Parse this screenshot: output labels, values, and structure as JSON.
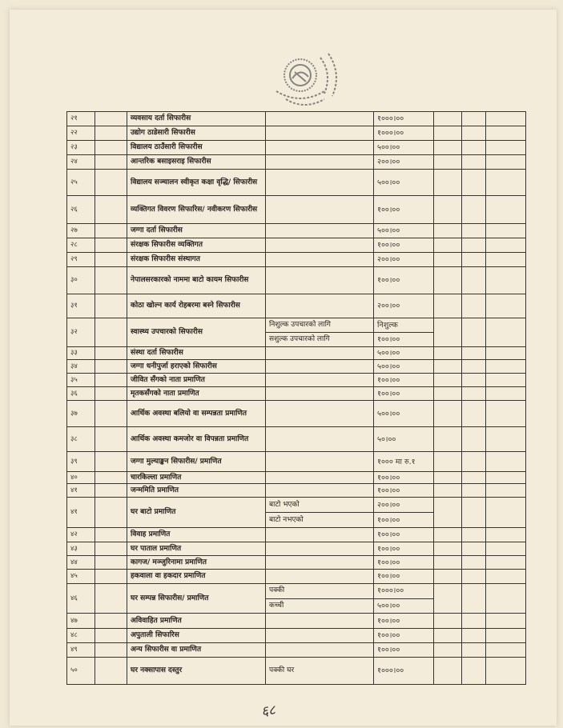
{
  "table": {
    "rows": [
      {
        "num": "२१",
        "desc": "व्यवसाय दर्ता सिफारीस",
        "sub": [
          {
            "note": "",
            "fee": "१०००।००"
          }
        ]
      },
      {
        "num": "२२",
        "desc": "उद्योग ठाडेसारी सिफारीस",
        "sub": [
          {
            "note": "",
            "fee": "१०००।००"
          }
        ]
      },
      {
        "num": "२३",
        "desc": "विद्यालय ठाउँसारी सिफारीस",
        "sub": [
          {
            "note": "",
            "fee": "५००।००"
          }
        ]
      },
      {
        "num": "२४",
        "desc": "आन्तरिक बसाइसराइ सिफारीस",
        "sub": [
          {
            "note": "",
            "fee": "२००।००"
          }
        ]
      },
      {
        "num": "२५",
        "desc": "विद्यालय सञ्चालन स्वीकृत कक्षा वृद्धि/ सिफारीस",
        "sub": [
          {
            "note": "",
            "fee": "५००।००"
          }
        ]
      },
      {
        "num": "२६",
        "desc": "व्यक्तिगत विवरण सिफारिस/ नवीकरण सिफारीस",
        "sub": [
          {
            "note": "",
            "fee": "१००।००"
          }
        ]
      },
      {
        "num": "२७",
        "desc": "जग्गा दर्ता सिफारीस",
        "sub": [
          {
            "note": "",
            "fee": "५००।००"
          }
        ]
      },
      {
        "num": "२८",
        "desc": "संरक्षक सिफारीस व्यक्तिगत",
        "sub": [
          {
            "note": "",
            "fee": "१००।००"
          }
        ]
      },
      {
        "num": "२९",
        "desc": "संरक्षक सिफारीस संस्थागत",
        "sub": [
          {
            "note": "",
            "fee": "२००।००"
          }
        ]
      },
      {
        "num": "३०",
        "desc": "नेपालसरकारको नाममा बाटो कायम सिफारीस",
        "sub": [
          {
            "note": "",
            "fee": "१००।००"
          }
        ]
      },
      {
        "num": "३१",
        "desc": "कोठा खोल्न कार्य रोहबरमा बस्ने सिफारीस",
        "sub": [
          {
            "note": "",
            "fee": "२००।००"
          }
        ]
      },
      {
        "num": "३२",
        "desc": "स्वास्थ्य उपचारको सिफारीस",
        "sub": [
          {
            "note": "निशुल्क उपचारको लागि",
            "fee": "निशुल्क"
          },
          {
            "note": "सशुल्क उपचारको लागि",
            "fee": "१००।००"
          }
        ]
      },
      {
        "num": "३३",
        "desc": "संस्था दर्ता सिफारीस",
        "sub": [
          {
            "note": "",
            "fee": "५००।००"
          }
        ]
      },
      {
        "num": "३४",
        "desc": "जग्गा धनीपुर्जा हराएको सिफारीस",
        "sub": [
          {
            "note": "",
            "fee": "५००।००"
          }
        ]
      },
      {
        "num": "३५",
        "desc": "जीवित सँगको नाता प्रमाणित",
        "sub": [
          {
            "note": "",
            "fee": "१००।००"
          }
        ]
      },
      {
        "num": "३६",
        "desc": "मृतकसँगको नाता प्रमाणित",
        "sub": [
          {
            "note": "",
            "fee": "१००।००"
          }
        ]
      },
      {
        "num": "३७",
        "desc": "आर्थिक अवस्था बलियो वा सम्पन्नता प्रमाणित",
        "sub": [
          {
            "note": "",
            "fee": "५००।००"
          }
        ]
      },
      {
        "num": "३८",
        "desc": "आर्थिक अवस्था कमजोर वा विपन्नता प्रमाणित",
        "sub": [
          {
            "note": "",
            "fee": "५०।००"
          }
        ]
      },
      {
        "num": "३९",
        "desc": "जग्गा मुल्याङ्कन सिफारीस/ प्रमाणित",
        "sub": [
          {
            "note": "",
            "fee": "१००० मा रु.१"
          }
        ]
      },
      {
        "num": "४०",
        "desc": "चारकिल्ला प्रमाणित",
        "sub": [
          {
            "note": "",
            "fee": "१००।००"
          }
        ]
      },
      {
        "num": "४१",
        "desc": "जन्ममिति प्रमाणित",
        "sub": [
          {
            "note": "",
            "fee": "१००।००"
          }
        ]
      },
      {
        "num": "४१",
        "desc": "घर बाटो प्रमाणित",
        "sub": [
          {
            "note": "बाटो भएको",
            "fee": "२००।००"
          },
          {
            "note": "बाटो नभएको",
            "fee": "१००।००"
          }
        ]
      },
      {
        "num": "४२",
        "desc": "विवाह प्रमाणित",
        "sub": [
          {
            "note": "",
            "fee": "१००।००"
          }
        ]
      },
      {
        "num": "४३",
        "desc": "घर पाताल प्रमाणित",
        "sub": [
          {
            "note": "",
            "fee": "१००।००"
          }
        ]
      },
      {
        "num": "४४",
        "desc": "कागज/ मञ्जुरिनामा प्रमाणित",
        "sub": [
          {
            "note": "",
            "fee": "१००।००"
          }
        ]
      },
      {
        "num": "४५",
        "desc": "हकवाला वा हकदार प्रमाणित",
        "sub": [
          {
            "note": "",
            "fee": "१००।००"
          }
        ]
      },
      {
        "num": "४६",
        "desc": "घर सम्पन्न सिफारीस/ प्रमाणित",
        "sub": [
          {
            "note": "पक्की",
            "fee": "१०००।००"
          },
          {
            "note": "कच्ची",
            "fee": "५००।००"
          }
        ]
      },
      {
        "num": "४७",
        "desc": "अविवाहित प्रमाणित",
        "sub": [
          {
            "note": "",
            "fee": "१००।००"
          }
        ]
      },
      {
        "num": "४८",
        "desc": "अपुताली सिफारिस",
        "sub": [
          {
            "note": "",
            "fee": "१००।००"
          }
        ]
      },
      {
        "num": "४९",
        "desc": "अन्य सिफारीस वा प्रमाणित",
        "sub": [
          {
            "note": "",
            "fee": "१००।००"
          }
        ]
      },
      {
        "num": "५०",
        "desc": "घर नक्सापास दस्तुर",
        "sub": [
          {
            "note": "पक्की घर",
            "fee": "१०००।००"
          }
        ]
      }
    ]
  },
  "stamp": {
    "icon": "office-seal-stamp",
    "color": "#6b6a6e"
  },
  "page_number": "६८"
}
